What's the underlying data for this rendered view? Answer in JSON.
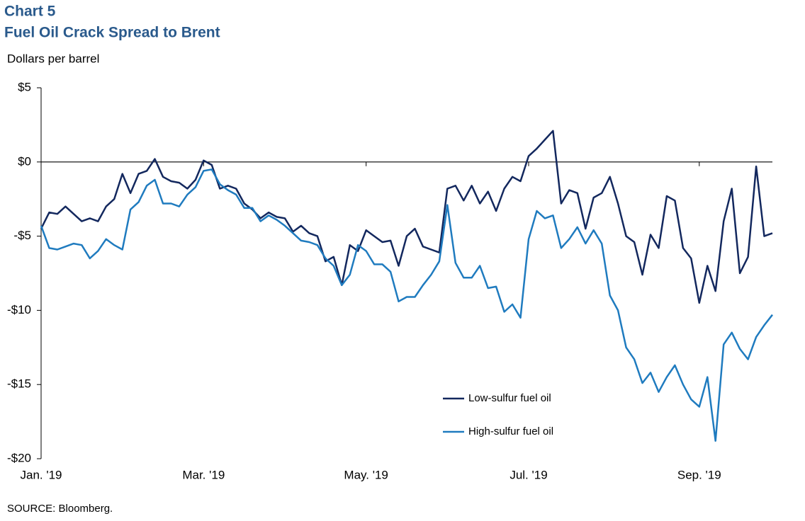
{
  "chart_data": {
    "type": "line",
    "title": "Chart 5",
    "subtitle": "Fuel Oil Crack Spread to Brent",
    "y_label": "Dollars per barrel",
    "source": "SOURCE:  Bloomberg.",
    "categories": [
      "Jan. '19",
      null,
      null,
      null,
      null,
      null,
      null,
      null,
      null,
      null,
      null,
      null,
      null,
      null,
      null,
      null,
      null,
      null,
      null,
      null,
      "Mar. '19",
      null,
      null,
      null,
      null,
      null,
      null,
      null,
      null,
      null,
      null,
      null,
      null,
      null,
      null,
      null,
      null,
      null,
      null,
      null,
      "May. '19",
      null,
      null,
      null,
      null,
      null,
      null,
      null,
      null,
      null,
      null,
      null,
      null,
      null,
      null,
      null,
      null,
      null,
      null,
      null,
      "Jul. '19",
      null,
      null,
      null,
      null,
      null,
      null,
      null,
      null,
      null,
      null,
      null,
      null,
      null,
      null,
      null,
      null,
      null,
      null,
      null,
      null,
      "Sep. '19",
      null,
      null,
      null,
      null,
      null,
      null,
      null,
      null,
      null
    ],
    "series": [
      {
        "name": "Low-sulfur fuel oil",
        "color": "#13285e",
        "values": [
          -4.5,
          -3.4,
          -3.5,
          -3.0,
          -3.5,
          -4.0,
          -3.8,
          -4.0,
          -3.0,
          -2.5,
          -0.8,
          -2.1,
          -0.8,
          -0.6,
          0.2,
          -1.0,
          -1.3,
          -1.4,
          -1.8,
          -1.2,
          0.1,
          -0.2,
          -1.8,
          -1.6,
          -1.8,
          -2.8,
          -3.2,
          -3.8,
          -3.4,
          -3.7,
          -3.8,
          -4.7,
          -4.3,
          -4.8,
          -5.0,
          -6.7,
          -6.4,
          -8.3,
          -5.6,
          -6.0,
          -4.6,
          -5.0,
          -5.4,
          -5.3,
          -7.0,
          -5.0,
          -4.5,
          -5.7,
          -5.9,
          -6.1,
          -1.8,
          -1.6,
          -2.6,
          -1.6,
          -2.8,
          -2.0,
          -3.3,
          -1.8,
          -1.0,
          -1.3,
          0.4,
          0.9,
          1.5,
          2.1,
          -2.8,
          -1.9,
          -2.1,
          -4.5,
          -2.4,
          -2.1,
          -1.0,
          -2.8,
          -5.0,
          -5.4,
          -7.6,
          -4.9,
          -5.8,
          -2.3,
          -2.6,
          -5.8,
          -6.5,
          -9.5,
          -7.0,
          -8.7,
          -4.0,
          -1.8,
          -7.5,
          -6.4,
          -0.3,
          -5.0,
          -4.8
        ]
      },
      {
        "name": "High-sulfur fuel oil",
        "color": "#1f7bbf",
        "values": [
          -4.3,
          -5.8,
          -5.9,
          -5.7,
          -5.5,
          -5.6,
          -6.5,
          -6.0,
          -5.2,
          -5.6,
          -5.9,
          -3.2,
          -2.7,
          -1.6,
          -1.2,
          -2.8,
          -2.8,
          -3.0,
          -2.2,
          -1.7,
          -0.6,
          -0.5,
          -1.5,
          -1.9,
          -2.2,
          -3.1,
          -3.1,
          -4.0,
          -3.6,
          -3.9,
          -4.3,
          -4.8,
          -5.3,
          -5.4,
          -5.6,
          -6.5,
          -7.0,
          -8.3,
          -7.6,
          -5.6,
          -6.0,
          -6.9,
          -6.9,
          -7.4,
          -9.4,
          -9.1,
          -9.1,
          -8.3,
          -7.6,
          -6.7,
          -2.9,
          -6.8,
          -7.8,
          -7.8,
          -7.0,
          -8.5,
          -8.4,
          -10.1,
          -9.6,
          -10.5,
          -5.2,
          -3.3,
          -3.8,
          -3.6,
          -5.8,
          -5.2,
          -4.4,
          -5.5,
          -4.6,
          -5.5,
          -9.0,
          -10.0,
          -12.5,
          -13.3,
          -14.9,
          -14.2,
          -15.5,
          -14.5,
          -13.7,
          -15.0,
          -16.0,
          -16.5,
          -14.5,
          -18.8,
          -12.3,
          -11.5,
          -12.6,
          -13.3,
          -11.8,
          -11.0,
          -10.3
        ]
      }
    ],
    "ylim": [
      -20,
      5
    ],
    "yticks": [
      {
        "value": 5,
        "label": "$5"
      },
      {
        "value": 0,
        "label": "$0"
      },
      {
        "value": -5,
        "label": "-$5"
      },
      {
        "value": -10,
        "label": "-$10"
      },
      {
        "value": -15,
        "label": "-$15"
      },
      {
        "value": -20,
        "label": "-$20"
      }
    ]
  }
}
